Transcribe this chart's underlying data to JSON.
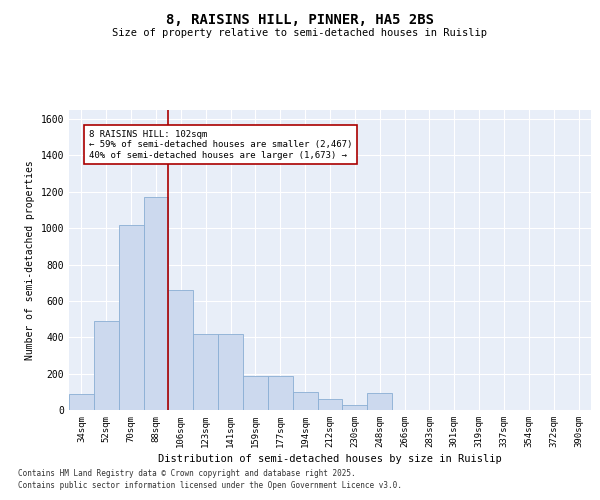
{
  "title": "8, RAISINS HILL, PINNER, HA5 2BS",
  "subtitle": "Size of property relative to semi-detached houses in Ruislip",
  "xlabel": "Distribution of semi-detached houses by size in Ruislip",
  "ylabel": "Number of semi-detached properties",
  "categories": [
    "34sqm",
    "52sqm",
    "70sqm",
    "88sqm",
    "106sqm",
    "123sqm",
    "141sqm",
    "159sqm",
    "177sqm",
    "194sqm",
    "212sqm",
    "230sqm",
    "248sqm",
    "266sqm",
    "283sqm",
    "301sqm",
    "319sqm",
    "337sqm",
    "354sqm",
    "372sqm",
    "390sqm"
  ],
  "values": [
    90,
    490,
    1020,
    1170,
    660,
    420,
    420,
    185,
    185,
    100,
    60,
    25,
    95,
    0,
    0,
    0,
    0,
    0,
    0,
    0,
    0
  ],
  "bar_color": "#ccd9ee",
  "bar_edge_color": "#8aaed4",
  "vline_color": "#aa0000",
  "vline_x_idx": 4,
  "annotation_text": "8 RAISINS HILL: 102sqm\n← 59% of semi-detached houses are smaller (2,467)\n40% of semi-detached houses are larger (1,673) →",
  "annotation_box_color": "#ffffff",
  "annotation_box_edge": "#aa0000",
  "ylim": [
    0,
    1650
  ],
  "yticks": [
    0,
    200,
    400,
    600,
    800,
    1000,
    1200,
    1400,
    1600
  ],
  "bg_color": "#e8eef8",
  "footer_line1": "Contains HM Land Registry data © Crown copyright and database right 2025.",
  "footer_line2": "Contains public sector information licensed under the Open Government Licence v3.0."
}
